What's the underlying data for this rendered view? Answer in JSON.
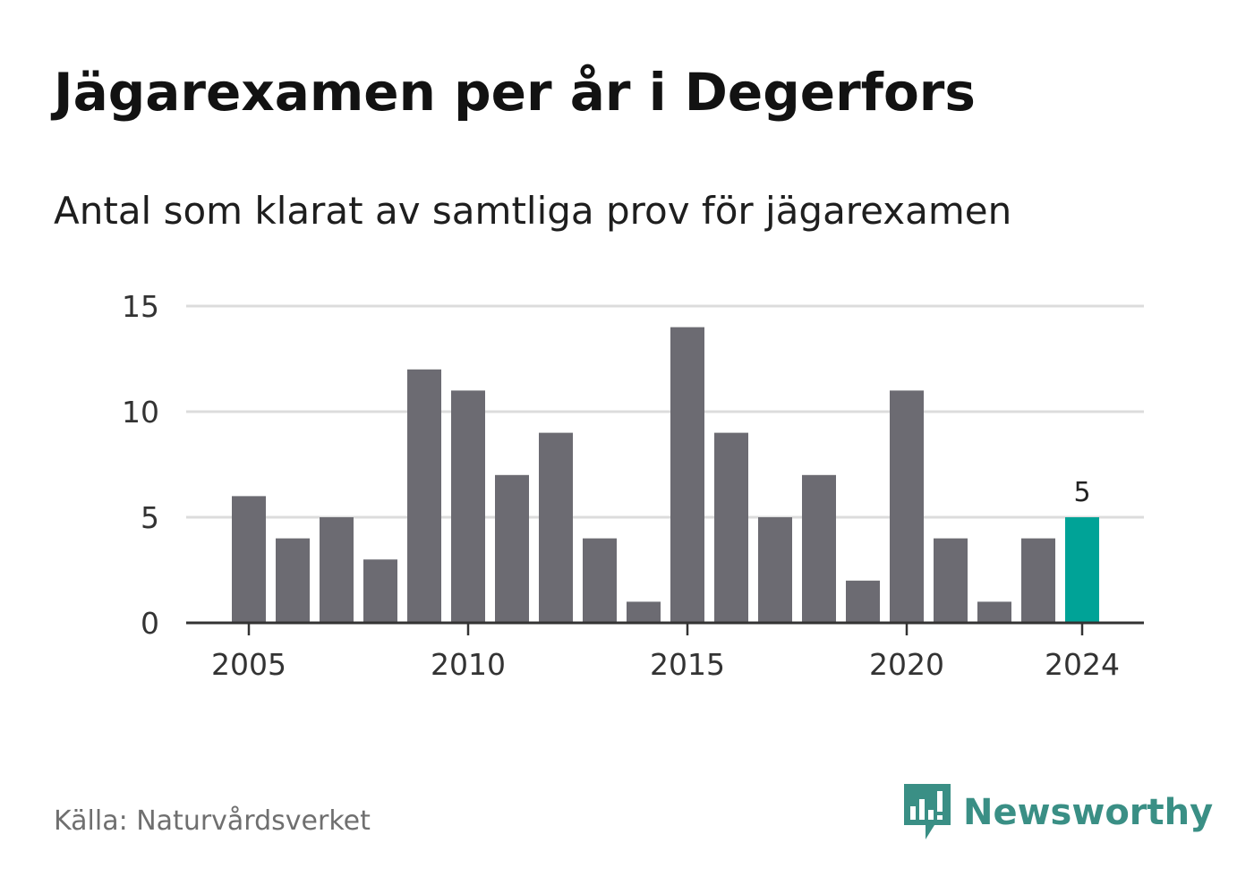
{
  "title": "Jägarexamen per år i Degerfors",
  "subtitle": "Antal som klarat av samtliga prov för jägarexamen",
  "source": "Källa: Naturvårdsverket",
  "brand": {
    "name": "Newsworthy",
    "icon": "newsworthy-chart-bubble-icon",
    "color": "#3a8f85"
  },
  "colors": {
    "bar": "#6c6b72",
    "highlight": "#00a397",
    "grid": "#dcdcdc",
    "axis": "#333333"
  },
  "chart_data": {
    "type": "bar",
    "x": [
      2005,
      2006,
      2007,
      2008,
      2009,
      2010,
      2011,
      2012,
      2013,
      2014,
      2015,
      2016,
      2017,
      2018,
      2019,
      2020,
      2021,
      2022,
      2023,
      2024
    ],
    "values": [
      6,
      4,
      5,
      3,
      12,
      11,
      7,
      9,
      4,
      1,
      14,
      9,
      5,
      7,
      2,
      11,
      4,
      1,
      4,
      5
    ],
    "ylim": [
      0,
      15
    ],
    "yticks": [
      "0",
      "5",
      "10",
      "15"
    ],
    "xticks": [
      "2005",
      "2010",
      "2015",
      "2020",
      "2024"
    ],
    "highlight": {
      "x": 2024,
      "label": "5"
    },
    "grid": true
  }
}
